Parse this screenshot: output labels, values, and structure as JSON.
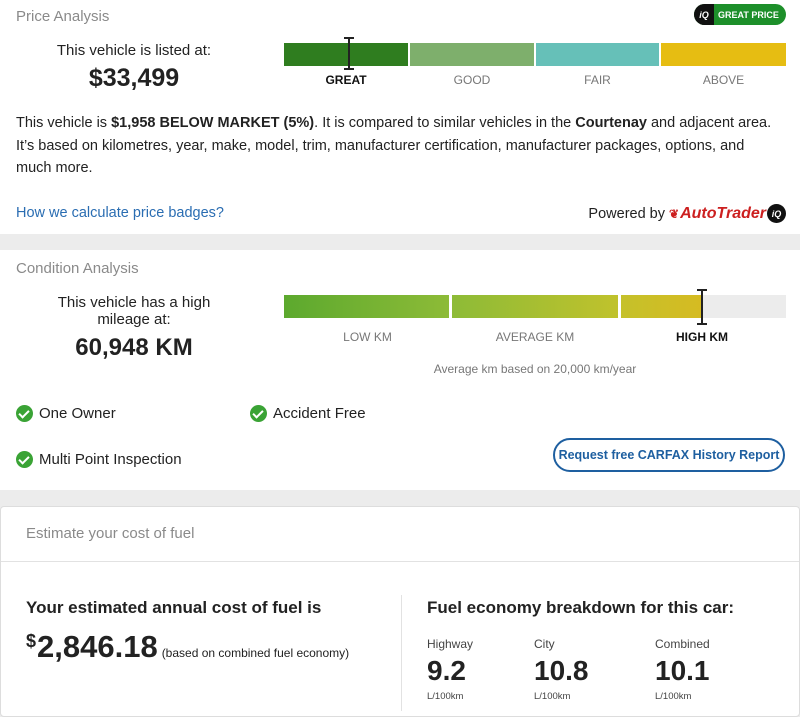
{
  "price_analysis": {
    "title": "Price Analysis",
    "badge": {
      "iq": "iQ",
      "label": "GREAT PRICE",
      "color": "#1d8f2a"
    },
    "listed_label": "This vehicle is listed at:",
    "listed_price": "$33,499",
    "scale": [
      {
        "label": "GREAT",
        "color": "#2f7d1f",
        "active": true
      },
      {
        "label": "GOOD",
        "color": "#7eaf6c",
        "active": false
      },
      {
        "label": "FAIR",
        "color": "#66c0b8",
        "active": false
      },
      {
        "label": "ABOVE",
        "color": "#e6bd12",
        "active": false
      }
    ],
    "description": {
      "part1": "This vehicle is ",
      "amount": "$1,958 BELOW MARKET (5%)",
      "part2": ". It is compared to similar vehicles in the ",
      "location": "Courtenay",
      "part3": " and adjacent area. It’s based on kilometres, year, make, model, trim, manufacturer certification, manufacturer packages, options, and much more."
    },
    "link": "How we calculate price badges?",
    "powered_by": "Powered by",
    "brand": "AutoTrader",
    "brand_iq": "iQ"
  },
  "condition_analysis": {
    "title": "Condition Analysis",
    "mileage_label": "This vehicle has a high mileage at:",
    "mileage_value": "60,948 KM",
    "scale": [
      {
        "label": "LOW KM",
        "active": false
      },
      {
        "label": "AVERAGE KM",
        "active": false
      },
      {
        "label": "HIGH KM",
        "active": true
      }
    ],
    "average_note": "Average km based on 20,000 km/year",
    "features": [
      "One Owner",
      "Accident Free",
      "Multi Point Inspection"
    ],
    "carfax_button": "Request free CARFAX History Report",
    "colors": {
      "check": "#3aa335",
      "button": "#1e5fa0"
    }
  },
  "fuel": {
    "title": "Estimate your cost of fuel",
    "annual_heading": "Your estimated annual cost of fuel is",
    "currency": "$",
    "annual_amount": "2,846.18",
    "annual_note": "(based on combined fuel economy)",
    "breakdown_heading": "Fuel economy breakdown for this car:",
    "breakdown": [
      {
        "label": "Highway",
        "value": "9.2",
        "unit": "L/100km"
      },
      {
        "label": "City",
        "value": "10.8",
        "unit": "L/100km"
      },
      {
        "label": "Combined",
        "value": "10.1",
        "unit": "L/100km"
      }
    ]
  }
}
